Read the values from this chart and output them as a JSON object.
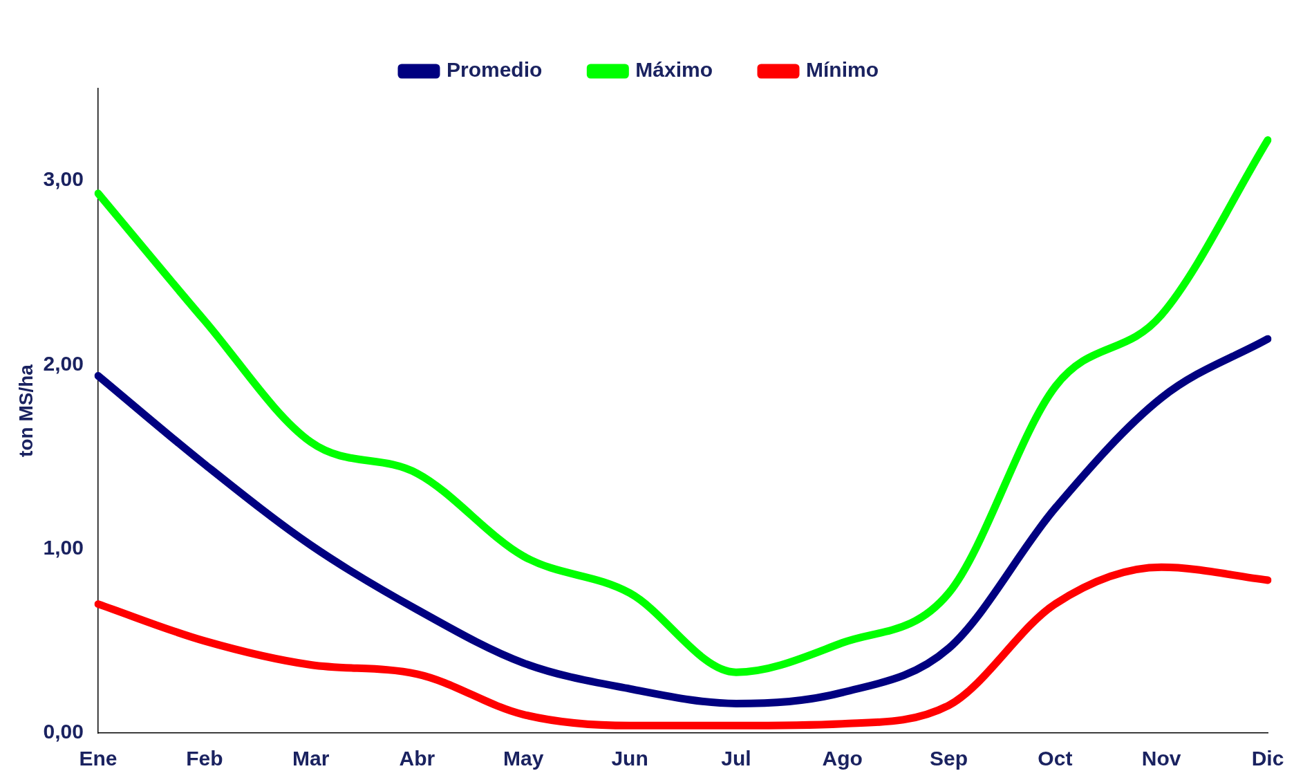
{
  "chart_data": {
    "type": "line",
    "ylabel": "ton MS/ha",
    "categories": [
      "Ene",
      "Feb",
      "Mar",
      "Abr",
      "May",
      "Jun",
      "Jul",
      "Ago",
      "Sep",
      "Oct",
      "Nov",
      "Dic"
    ],
    "series": [
      {
        "name": "Promedio",
        "color": "#000080",
        "values": [
          1.94,
          1.46,
          1.02,
          0.67,
          0.38,
          0.24,
          0.16,
          0.22,
          0.46,
          1.22,
          1.82,
          2.14
        ]
      },
      {
        "name": "Máximo",
        "color": "#00ff00",
        "values": [
          2.93,
          2.24,
          1.58,
          1.41,
          0.96,
          0.76,
          0.33,
          0.49,
          0.76,
          1.88,
          2.27,
          3.22
        ]
      },
      {
        "name": "Mínimo",
        "color": "#ff0000",
        "values": [
          0.7,
          0.5,
          0.37,
          0.32,
          0.1,
          0.04,
          0.04,
          0.05,
          0.15,
          0.7,
          0.9,
          0.83
        ]
      }
    ],
    "ylim": [
      0,
      3.5
    ],
    "yticks": [
      {
        "value": 0,
        "label": "0,00"
      },
      {
        "value": 1,
        "label": "1,00"
      },
      {
        "value": 2,
        "label": "2,00"
      },
      {
        "value": 3,
        "label": "3,00"
      }
    ],
    "grid": false,
    "legend": "top",
    "marker": "none",
    "line_style": "solid"
  }
}
